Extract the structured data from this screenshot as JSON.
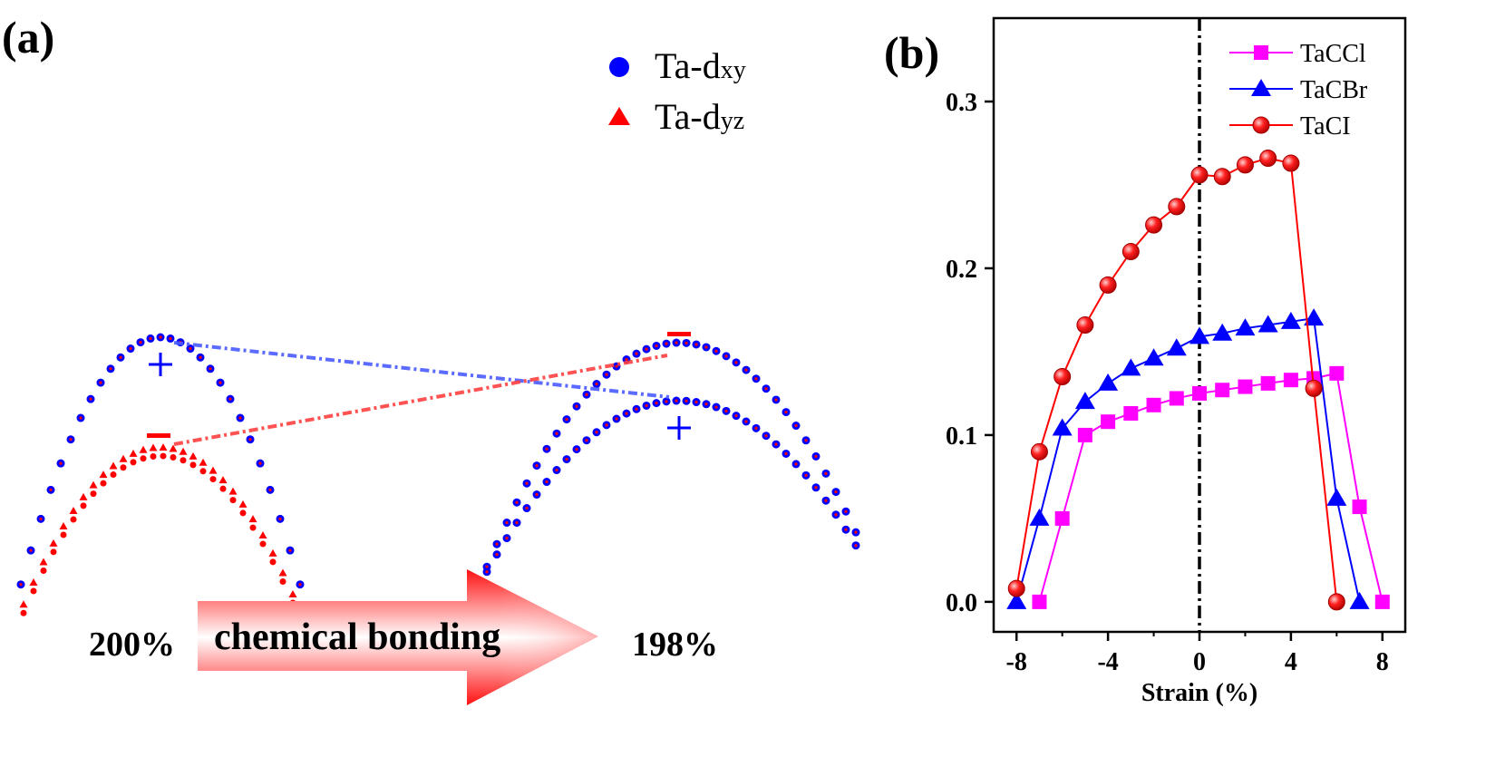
{
  "panel_a": {
    "label": "(a)",
    "legend": [
      {
        "name": "Ta-dxy",
        "prefix": "Ta-d",
        "sub": "xy",
        "marker": "circle",
        "color": "#0000ff"
      },
      {
        "name": "Ta-dyz",
        "prefix": "Ta-d",
        "sub": "yz",
        "marker": "triangle",
        "color": "#ff0000"
      }
    ],
    "arrow_text": "chemical bonding",
    "left_percent": "200%",
    "right_percent": "198%",
    "colors": {
      "dxy": "#0000ff",
      "dyz": "#ff0000",
      "arrow": "#ff0000"
    }
  },
  "panel_b": {
    "label": "(b)"
  },
  "chart_data": {
    "type": "line",
    "xlabel": "Strain (%)",
    "ylabel": "",
    "xlim": [
      -9,
      9
    ],
    "ylim": [
      -0.018,
      0.35
    ],
    "xticks": [
      -8,
      -4,
      0,
      4,
      8
    ],
    "xtick_labels": [
      "-8",
      "-4",
      "0",
      "4",
      "8"
    ],
    "yticks": [
      0.0,
      0.1,
      0.2,
      0.3
    ],
    "ytick_labels": [
      "0.0",
      "0.1",
      "0.2",
      "0.3"
    ],
    "reference_line_x": 0,
    "legend_position": "top-right",
    "x": [
      -8,
      -7,
      -6,
      -5,
      -4,
      -3,
      -2,
      -1,
      0,
      1,
      2,
      3,
      4,
      5,
      6,
      7,
      8
    ],
    "series": [
      {
        "name": "TaCCl",
        "marker": "square",
        "color": "#ff00ff",
        "values": [
          null,
          0.0,
          0.05,
          0.1,
          0.108,
          0.113,
          0.118,
          0.122,
          0.125,
          0.127,
          0.129,
          0.131,
          0.133,
          0.134,
          0.137,
          0.057,
          0.0
        ]
      },
      {
        "name": "TaCBr",
        "marker": "triangle",
        "color": "#0000ff",
        "values": [
          0.0,
          0.05,
          0.104,
          0.12,
          0.131,
          0.14,
          0.146,
          0.152,
          0.159,
          0.161,
          0.164,
          0.166,
          0.168,
          0.17,
          0.062,
          0.0,
          null
        ]
      },
      {
        "name": "TaCI",
        "marker": "circle",
        "color": "#ff0000",
        "values": [
          0.008,
          0.09,
          0.135,
          0.166,
          0.19,
          0.21,
          0.226,
          0.237,
          0.256,
          0.255,
          0.262,
          0.266,
          0.263,
          0.128,
          0.0,
          null,
          null
        ]
      }
    ]
  }
}
